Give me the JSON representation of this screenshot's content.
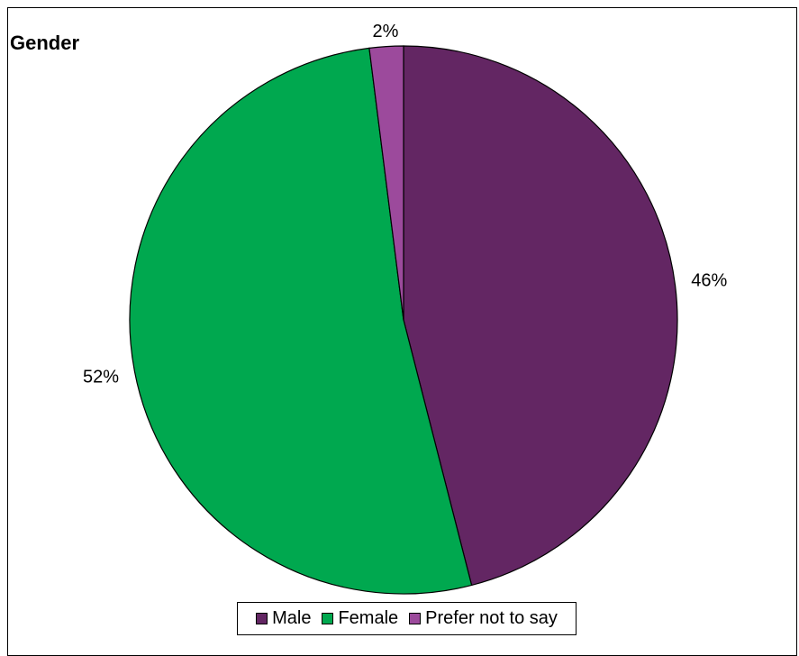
{
  "chart_data": {
    "type": "pie",
    "title": "Gender",
    "slices": [
      {
        "label": "Male",
        "value": 46,
        "value_label": "46%",
        "color": "#632663"
      },
      {
        "label": "Female",
        "value": 52,
        "value_label": "52%",
        "color": "#00a84f"
      },
      {
        "label": "Prefer not to say",
        "value": 2,
        "value_label": "2%",
        "color": "#9c4a9c"
      }
    ],
    "legend_position": "bottom",
    "start": "top, clockwise"
  }
}
